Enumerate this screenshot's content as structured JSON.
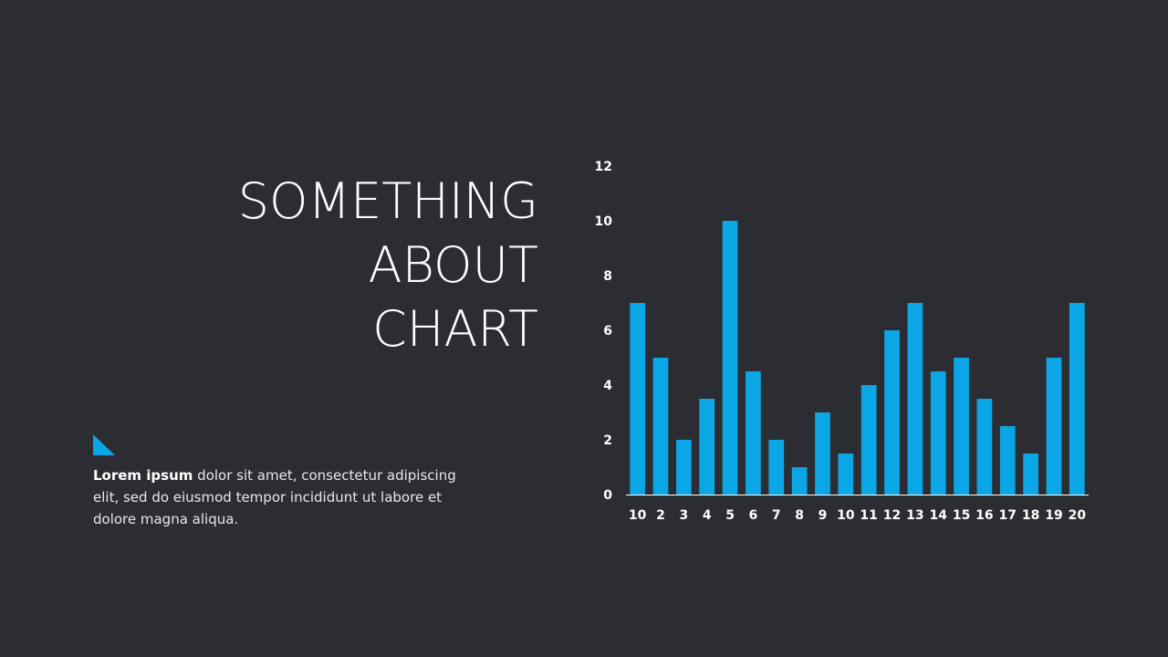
{
  "slide": {
    "title_lines": [
      "SOMETHING",
      "ABOUT",
      "CHART"
    ],
    "description_bold": "Lorem ipsum",
    "description_text": " dolor sit amet, consectetur adipiscing elit, sed do eiusmod tempor incididunt  ut labore et dolore magna aliqua.",
    "accent_color": "#0aa6e6",
    "background_color": "#2c2d32"
  },
  "chart_data": {
    "type": "bar",
    "categories": [
      "10",
      "2",
      "3",
      "4",
      "5",
      "6",
      "7",
      "8",
      "9",
      "10",
      "11",
      "12",
      "13",
      "14",
      "15",
      "16",
      "17",
      "18",
      "19",
      "20"
    ],
    "values": [
      7,
      5,
      2,
      3.5,
      10,
      4.5,
      2,
      1,
      3,
      1.5,
      4,
      6,
      7,
      4.5,
      5,
      3.5,
      2.5,
      1.5,
      5,
      7
    ],
    "yticks": [
      "0",
      "2",
      "4",
      "6",
      "8",
      "10",
      "12"
    ],
    "ylim": [
      0,
      12
    ],
    "bar_color": "#0aa6e6",
    "title": "",
    "xlabel": "",
    "ylabel": ""
  }
}
